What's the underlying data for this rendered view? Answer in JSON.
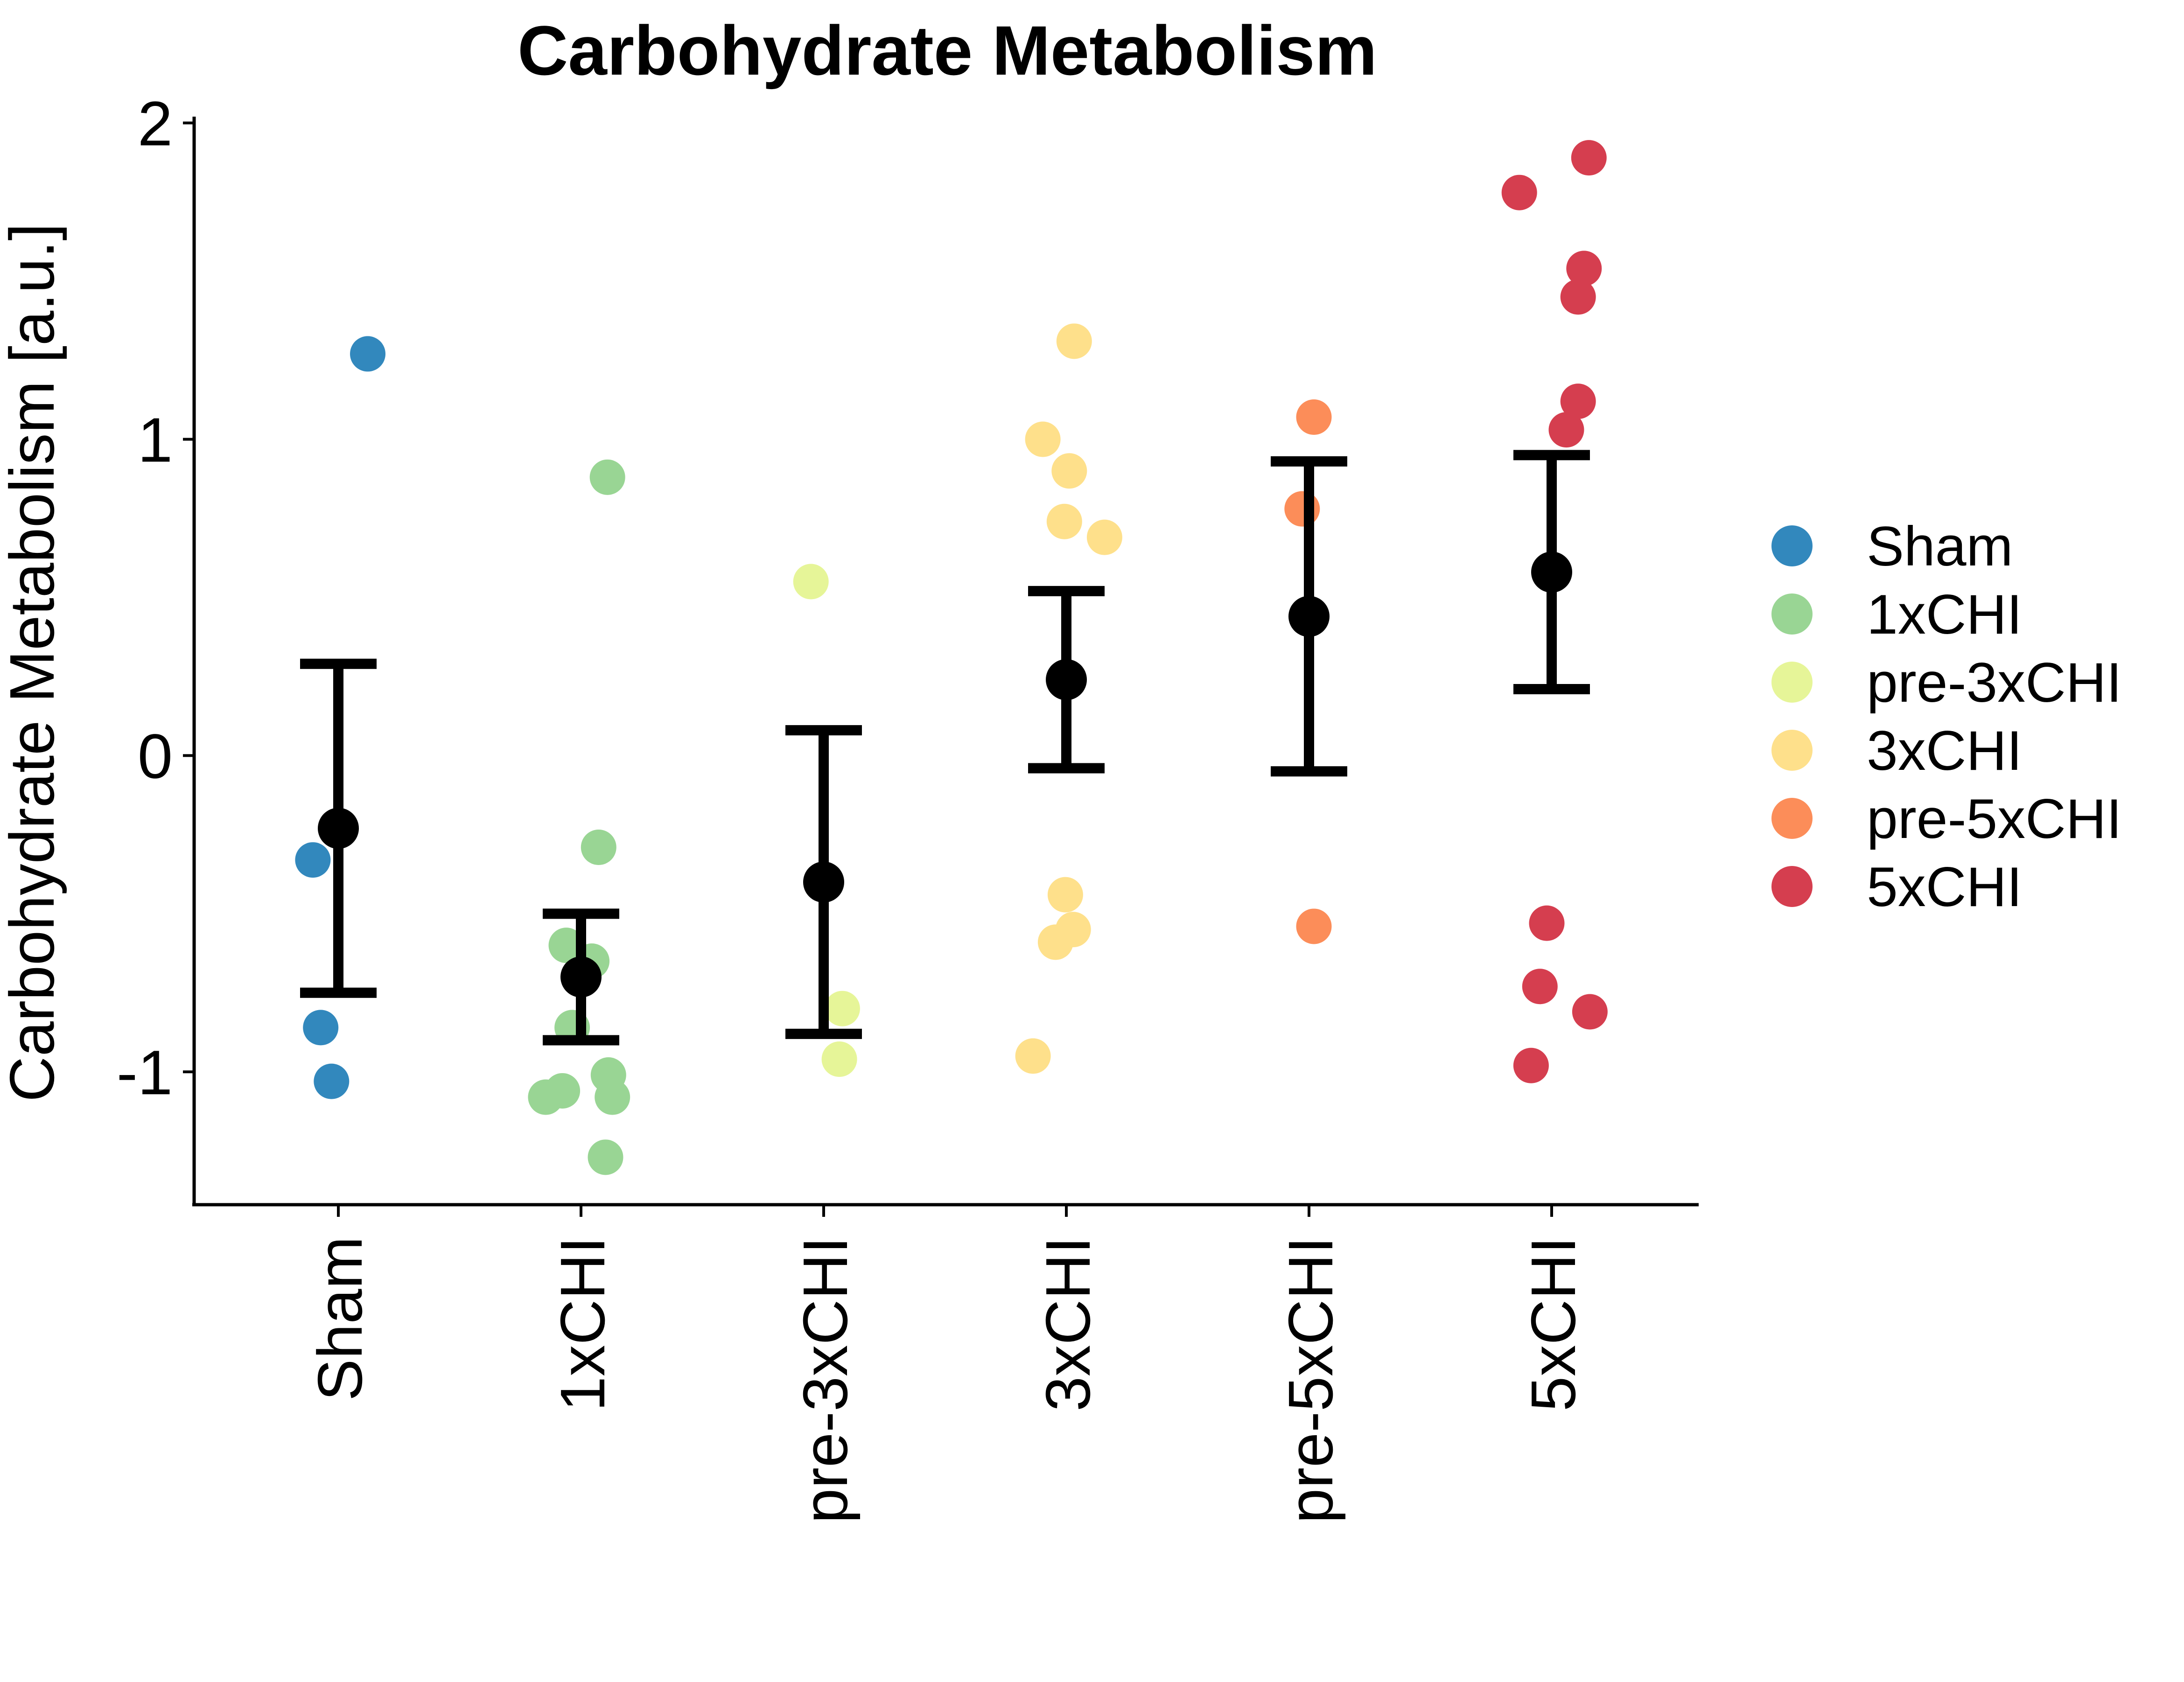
{
  "chart_data": {
    "type": "scatter",
    "title": "Carbohydrate Metabolism",
    "xlabel": "",
    "ylabel": "Carbohydrate Metabolism [a.u.]",
    "ylim": [
      -1.42,
      2.02
    ],
    "yticks": [
      -1,
      0,
      1,
      2
    ],
    "grid": false,
    "legend_position": "right",
    "categories": [
      "Sham",
      "1xCHI",
      "pre-3xCHI",
      "3xCHI",
      "pre-5xCHI",
      "5xCHI"
    ],
    "series": [
      {
        "name": "Sham",
        "color": "#3288bd",
        "points": [
          {
            "x": "Sham",
            "y": 1.27,
            "j": 0.3
          },
          {
            "x": "Sham",
            "y": -0.33,
            "j": -0.26
          },
          {
            "x": "Sham",
            "y": -0.86,
            "j": -0.18
          },
          {
            "x": "Sham",
            "y": -1.03,
            "j": -0.07
          }
        ]
      },
      {
        "name": "1xCHI",
        "color": "#99d594",
        "points": [
          {
            "x": "1xCHI",
            "y": 0.88,
            "j": 0.27
          },
          {
            "x": "1xCHI",
            "y": -0.29,
            "j": 0.18
          },
          {
            "x": "1xCHI",
            "y": -0.6,
            "j": -0.15
          },
          {
            "x": "1xCHI",
            "y": -0.65,
            "j": 0.11
          },
          {
            "x": "1xCHI",
            "y": -0.86,
            "j": -0.09
          },
          {
            "x": "1xCHI",
            "y": -1.01,
            "j": 0.28
          },
          {
            "x": "1xCHI",
            "y": -1.08,
            "j": -0.36
          },
          {
            "x": "1xCHI",
            "y": -1.06,
            "j": -0.19
          },
          {
            "x": "1xCHI",
            "y": -1.08,
            "j": 0.32
          },
          {
            "x": "1xCHI",
            "y": -1.27,
            "j": 0.25
          }
        ]
      },
      {
        "name": "pre-3xCHI",
        "color": "#e6f598",
        "points": [
          {
            "x": "pre-3xCHI",
            "y": 0.55,
            "j": -0.13
          },
          {
            "x": "pre-3xCHI",
            "y": -0.8,
            "j": 0.19
          },
          {
            "x": "pre-3xCHI",
            "y": -0.96,
            "j": 0.16
          }
        ]
      },
      {
        "name": "3xCHI",
        "color": "#fee08b",
        "points": [
          {
            "x": "3xCHI",
            "y": 1.31,
            "j": 0.08
          },
          {
            "x": "3xCHI",
            "y": 1.0,
            "j": -0.24
          },
          {
            "x": "3xCHI",
            "y": 0.9,
            "j": 0.03
          },
          {
            "x": "3xCHI",
            "y": 0.74,
            "j": -0.02
          },
          {
            "x": "3xCHI",
            "y": 0.69,
            "j": 0.39
          },
          {
            "x": "3xCHI",
            "y": -0.44,
            "j": -0.01
          },
          {
            "x": "3xCHI",
            "y": -0.55,
            "j": 0.07
          },
          {
            "x": "3xCHI",
            "y": -0.59,
            "j": -0.11
          },
          {
            "x": "3xCHI",
            "y": -0.95,
            "j": -0.34
          }
        ]
      },
      {
        "name": "pre-5xCHI",
        "color": "#fc8d59",
        "points": [
          {
            "x": "pre-5xCHI",
            "y": 1.07,
            "j": 0.05
          },
          {
            "x": "pre-5xCHI",
            "y": 0.78,
            "j": -0.07
          },
          {
            "x": "pre-5xCHI",
            "y": -0.54,
            "j": 0.05
          }
        ]
      },
      {
        "name": "5xCHI",
        "color": "#d53e4f",
        "points": [
          {
            "x": "5xCHI",
            "y": 1.89,
            "j": 0.38
          },
          {
            "x": "5xCHI",
            "y": 1.78,
            "j": -0.33
          },
          {
            "x": "5xCHI",
            "y": 1.54,
            "j": 0.33
          },
          {
            "x": "5xCHI",
            "y": 1.45,
            "j": 0.27
          },
          {
            "x": "5xCHI",
            "y": 1.12,
            "j": 0.27
          },
          {
            "x": "5xCHI",
            "y": 1.03,
            "j": 0.15
          },
          {
            "x": "5xCHI",
            "y": -0.53,
            "j": -0.05
          },
          {
            "x": "5xCHI",
            "y": -0.73,
            "j": -0.12
          },
          {
            "x": "5xCHI",
            "y": -0.81,
            "j": 0.39
          },
          {
            "x": "5xCHI",
            "y": -0.98,
            "j": -0.21
          }
        ]
      }
    ],
    "summary": [
      {
        "category": "Sham",
        "mean": -0.23,
        "lower": -0.75,
        "upper": 0.29
      },
      {
        "category": "1xCHI",
        "mean": -0.7,
        "lower": -0.9,
        "upper": -0.5
      },
      {
        "category": "pre-3xCHI",
        "mean": -0.4,
        "lower": -0.88,
        "upper": 0.08
      },
      {
        "category": "3xCHI",
        "mean": 0.24,
        "lower": -0.04,
        "upper": 0.52
      },
      {
        "category": "pre-5xCHI",
        "mean": 0.44,
        "lower": -0.05,
        "upper": 0.93
      },
      {
        "category": "5xCHI",
        "mean": 0.58,
        "lower": 0.21,
        "upper": 0.95
      }
    ]
  }
}
